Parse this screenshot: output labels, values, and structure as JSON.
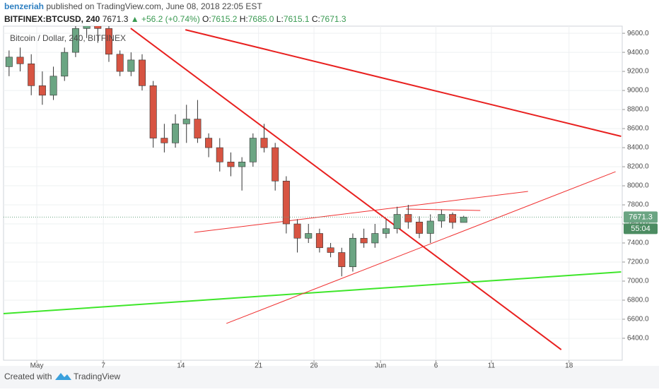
{
  "header": {
    "author": "benzeriah",
    "published": "published on TradingView.com, June 08, 2018 22:05 EST",
    "symbol": "BITFINEX:BTCUSD, 240",
    "last": "7671.3",
    "change": "▲ +56.2 (+0.74%)",
    "ohlc": [
      {
        "label": "O:",
        "value": "7615.2"
      },
      {
        "label": "H:",
        "value": "7685.0"
      },
      {
        "label": "L:",
        "value": "7615.1"
      },
      {
        "label": "C:",
        "value": "7671.3"
      }
    ]
  },
  "chart_data": {
    "type": "candlestick",
    "legend": "Bitcoin / Dollar, 240, BITFINEX",
    "up_color": "#6ba583",
    "down_color": "#d75442",
    "xlim": [
      -3,
      52.8
    ],
    "xticks": [
      {
        "value": 0,
        "label": "May"
      },
      {
        "value": 6,
        "label": "7"
      },
      {
        "value": 13,
        "label": "14"
      },
      {
        "value": 20,
        "label": "21"
      },
      {
        "value": 25,
        "label": "26"
      },
      {
        "value": 31,
        "label": "Jun"
      },
      {
        "value": 36,
        "label": "6"
      },
      {
        "value": 41,
        "label": "11"
      },
      {
        "value": 48,
        "label": "18"
      }
    ],
    "ylim": [
      6170,
      9675
    ],
    "yticks": [
      {
        "value": 6400,
        "label": "6400.0"
      },
      {
        "value": 6600,
        "label": "6600.0"
      },
      {
        "value": 6800,
        "label": "6800.0"
      },
      {
        "value": 7000,
        "label": "7000.0"
      },
      {
        "value": 7200,
        "label": "7200.0"
      },
      {
        "value": 7400,
        "label": "7400.0"
      },
      {
        "value": 7600,
        "label": "7600.0"
      },
      {
        "value": 7800,
        "label": "7800.0"
      },
      {
        "value": 8000,
        "label": "8000.0"
      },
      {
        "value": 8200,
        "label": "8200.0"
      },
      {
        "value": 8400,
        "label": "8400.0"
      },
      {
        "value": 8600,
        "label": "8600.0"
      },
      {
        "value": 8800,
        "label": "8800.0"
      },
      {
        "value": 9000,
        "label": "9000.0"
      },
      {
        "value": 9200,
        "label": "9200.0"
      },
      {
        "value": 9400,
        "label": "9400.0"
      },
      {
        "value": 9600,
        "label": "9600.0"
      }
    ],
    "candles": [
      {
        "x": -3,
        "open": 9250,
        "high": 9420,
        "low": 9150,
        "close": 9350
      },
      {
        "x": -2,
        "open": 9350,
        "high": 9450,
        "low": 9200,
        "close": 9280
      },
      {
        "x": -1,
        "open": 9280,
        "high": 9380,
        "low": 8950,
        "close": 9050
      },
      {
        "x": 0,
        "open": 9050,
        "high": 9200,
        "low": 8850,
        "close": 8950
      },
      {
        "x": 1,
        "open": 8950,
        "high": 9250,
        "low": 8900,
        "close": 9150
      },
      {
        "x": 2,
        "open": 9150,
        "high": 9450,
        "low": 9100,
        "close": 9400
      },
      {
        "x": 3,
        "open": 9400,
        "high": 9700,
        "low": 9350,
        "close": 9650
      },
      {
        "x": 4,
        "open": 9650,
        "high": 9750,
        "low": 9550,
        "close": 9700
      },
      {
        "x": 5,
        "open": 9700,
        "high": 9750,
        "low": 9500,
        "close": 9650
      },
      {
        "x": 6,
        "open": 9650,
        "high": 9700,
        "low": 9300,
        "close": 9380
      },
      {
        "x": 7,
        "open": 9380,
        "high": 9420,
        "low": 9150,
        "close": 9200
      },
      {
        "x": 8,
        "open": 9200,
        "high": 9400,
        "low": 9150,
        "close": 9320
      },
      {
        "x": 9,
        "open": 9320,
        "high": 9380,
        "low": 9000,
        "close": 9050
      },
      {
        "x": 10,
        "open": 9050,
        "high": 9100,
        "low": 8400,
        "close": 8500
      },
      {
        "x": 11,
        "open": 8500,
        "high": 8650,
        "low": 8350,
        "close": 8450
      },
      {
        "x": 12,
        "open": 8450,
        "high": 8750,
        "low": 8400,
        "close": 8650
      },
      {
        "x": 13,
        "open": 8650,
        "high": 8850,
        "low": 8450,
        "close": 8700
      },
      {
        "x": 14,
        "open": 8700,
        "high": 8900,
        "low": 8450,
        "close": 8500
      },
      {
        "x": 15,
        "open": 8500,
        "high": 8550,
        "low": 8300,
        "close": 8400
      },
      {
        "x": 16,
        "open": 8400,
        "high": 8500,
        "low": 8150,
        "close": 8250
      },
      {
        "x": 17,
        "open": 8250,
        "high": 8350,
        "low": 8100,
        "close": 8200
      },
      {
        "x": 18,
        "open": 8200,
        "high": 8300,
        "low": 7950,
        "close": 8250
      },
      {
        "x": 19,
        "open": 8250,
        "high": 8550,
        "low": 8200,
        "close": 8500
      },
      {
        "x": 20,
        "open": 8500,
        "high": 8650,
        "low": 8350,
        "close": 8400
      },
      {
        "x": 21,
        "open": 8400,
        "high": 8450,
        "low": 7950,
        "close": 8050
      },
      {
        "x": 22,
        "open": 8050,
        "high": 8100,
        "low": 7500,
        "close": 7600
      },
      {
        "x": 23,
        "open": 7600,
        "high": 7650,
        "low": 7300,
        "close": 7450
      },
      {
        "x": 24,
        "open": 7450,
        "high": 7600,
        "low": 7400,
        "close": 7500
      },
      {
        "x": 25,
        "open": 7500,
        "high": 7550,
        "low": 7300,
        "close": 7350
      },
      {
        "x": 26,
        "open": 7350,
        "high": 7400,
        "low": 7250,
        "close": 7300
      },
      {
        "x": 27,
        "open": 7300,
        "high": 7350,
        "low": 7050,
        "close": 7150
      },
      {
        "x": 28,
        "open": 7150,
        "high": 7500,
        "low": 7100,
        "close": 7450
      },
      {
        "x": 29,
        "open": 7450,
        "high": 7550,
        "low": 7350,
        "close": 7400
      },
      {
        "x": 30,
        "open": 7400,
        "high": 7600,
        "low": 7350,
        "close": 7500
      },
      {
        "x": 31,
        "open": 7500,
        "high": 7650,
        "low": 7450,
        "close": 7550
      },
      {
        "x": 32,
        "open": 7550,
        "high": 7780,
        "low": 7500,
        "close": 7700
      },
      {
        "x": 33,
        "open": 7700,
        "high": 7800,
        "low": 7550,
        "close": 7620
      },
      {
        "x": 34,
        "open": 7620,
        "high": 7680,
        "low": 7450,
        "close": 7500
      },
      {
        "x": 35,
        "open": 7500,
        "high": 7700,
        "low": 7400,
        "close": 7630
      },
      {
        "x": 36,
        "open": 7630,
        "high": 7750,
        "low": 7560,
        "close": 7700
      },
      {
        "x": 37,
        "open": 7700,
        "high": 7720,
        "low": 7550,
        "close": 7615.2
      },
      {
        "x": 38,
        "open": 7615.2,
        "high": 7685.0,
        "low": 7615.1,
        "close": 7671.3
      }
    ],
    "trendlines": [
      {
        "color": "#e8201f",
        "width": 2,
        "x": [
          8.47,
          47.3
        ],
        "y": [
          9652,
          6281
        ]
      },
      {
        "color": "#e8201f",
        "width": 2,
        "x": [
          13.4,
          52.7
        ],
        "y": [
          9637,
          8519
        ]
      },
      {
        "color": "#3ee62a",
        "width": 2,
        "x": [
          -3,
          52.7
        ],
        "y": [
          6659,
          7096
        ]
      },
      {
        "color": "#f03030",
        "width": 1,
        "x": [
          14.2,
          44.3
        ],
        "y": [
          7511,
          7941
        ]
      },
      {
        "color": "#f03030",
        "width": 1,
        "x": [
          17.1,
          52.2
        ],
        "y": [
          6556,
          8148
        ]
      },
      {
        "color": "#f03030",
        "width": 1,
        "x": [
          33.3,
          40
        ],
        "y": [
          7756,
          7741
        ]
      }
    ],
    "last_price": 7671.3,
    "last_price_label": "7671.3",
    "countdown": "55:04"
  },
  "footer": {
    "created": "Created with",
    "brand": "TradingView"
  }
}
